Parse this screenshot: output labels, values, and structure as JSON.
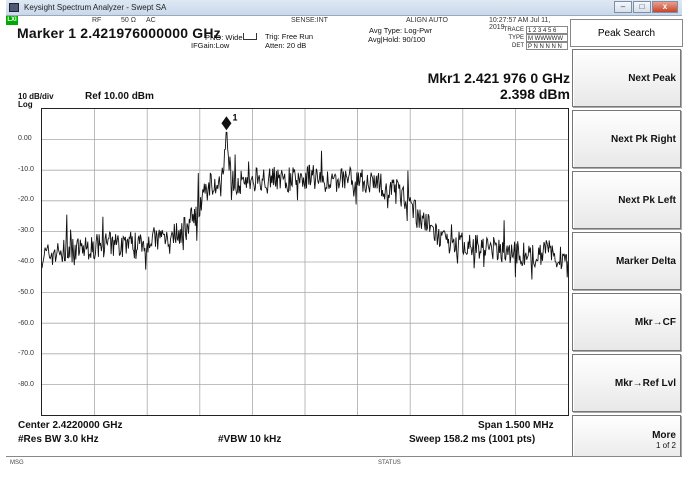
{
  "window": {
    "title": "Keysight Spectrum Analyzer - Swept SA",
    "minimize": "–",
    "maximize": "□",
    "close": "x"
  },
  "status": {
    "lxi": "LXI",
    "rf": "RF",
    "impedance": "50 Ω",
    "coupling": "AC",
    "sense": "SENSE:INT",
    "align": "ALIGN AUTO",
    "datetime": "10:27:57 AM Jul 11, 2019"
  },
  "marker": {
    "title": "Marker 1  2.421976000000 GHz",
    "pno": "PNO: Wide",
    "ifgain": "IFGain:Low",
    "trig": "Trig: Free Run",
    "atten": "Atten: 20 dB",
    "avg_type": "Avg Type: Log-Pwr",
    "avg_hold": "Avg|Hold: 90/100",
    "readout_freq": "Mkr1  2.421 976 0 GHz",
    "readout_amp": "2.398 dBm",
    "label": "1"
  },
  "trace_table": {
    "labels": [
      "TRACE",
      "TYPE",
      "DET"
    ],
    "values": [
      "1 2 3 4 5 6",
      "M WWWWW",
      "P N N N N N"
    ]
  },
  "scale": {
    "per_div": "10 dB/div",
    "ref": "Ref 10.00 dBm",
    "log": "Log"
  },
  "y_ticks": [
    "0.00",
    "-10.0",
    "-20.0",
    "-30.0",
    "-40.0",
    "-50.0",
    "-60.0",
    "-70.0",
    "-80.0"
  ],
  "bottom": {
    "center": "Center 2.4220000 GHz",
    "res_bw": "#Res BW 3.0 kHz",
    "vbw": "#VBW 10 kHz",
    "span": "Span 1.500 MHz",
    "sweep": "Sweep  158.2 ms (1001 pts)"
  },
  "msgbar": {
    "msg": "MSG",
    "status": "STATUS"
  },
  "softkeys": {
    "title": "Peak Search",
    "keys": [
      "Next Peak",
      "Next Pk Right",
      "Next Pk Left",
      "Marker Delta",
      "Mkr→CF",
      "Mkr→Ref Lvl",
      "More"
    ],
    "more_sub": "1 of 2"
  },
  "chart_data": {
    "type": "line",
    "x_unit": "GHz",
    "y_unit": "dBm",
    "xlim": [
      2.42145,
      2.42295
    ],
    "ylim": [
      -90,
      10
    ],
    "grid": true,
    "series": [
      {
        "x": [
          2.42145,
          2.42155,
          2.42165,
          2.42175,
          2.42185,
          2.42189,
          2.42193,
          2.42196,
          2.421976,
          2.42199,
          2.42202,
          2.42206,
          2.4221,
          2.42214,
          2.42218,
          2.42222,
          2.42226,
          2.4223,
          2.42234,
          2.42238,
          2.42242,
          2.42246,
          2.4225,
          2.42255,
          2.4226,
          2.42265,
          2.4227,
          2.42275,
          2.4228,
          2.42285,
          2.4229,
          2.42295
        ],
        "values": [
          -38,
          -36,
          -34,
          -33,
          -30,
          -24,
          -14,
          -16,
          2.4,
          -14,
          -14,
          -13,
          -12,
          -13,
          -13,
          -12,
          -14,
          -13,
          -12,
          -14,
          -15,
          -16,
          -22,
          -28,
          -34,
          -34,
          -35,
          -36,
          -37,
          -38,
          -36,
          -40
        ]
      }
    ],
    "markers": [
      {
        "label": "1",
        "x": 2.421976,
        "y": 2.398
      }
    ]
  }
}
